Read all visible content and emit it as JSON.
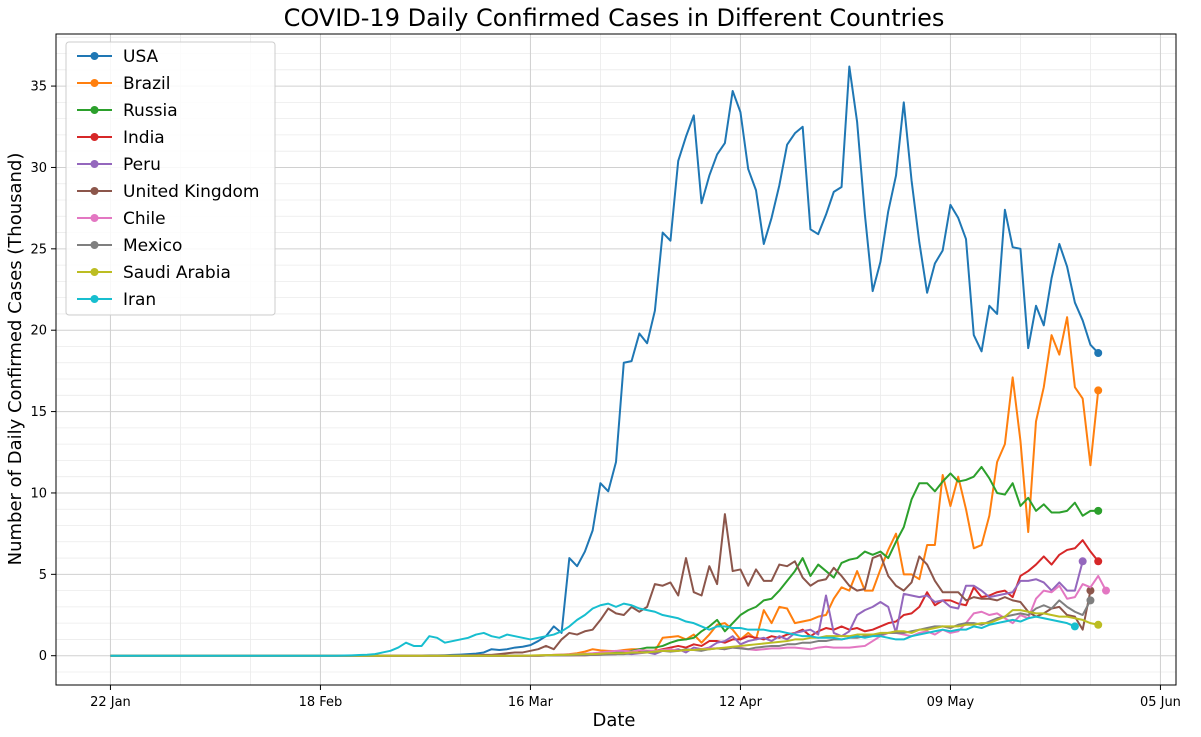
{
  "chart_data": {
    "type": "line",
    "title": "COVID-19 Daily Confirmed Cases in Different Countries",
    "xlabel": "Date",
    "ylabel": "Number of Daily Confirmed Cases (Thousand)",
    "x_start": "2020-01-22",
    "x_end": "2020-05-31",
    "xlim": [
      "2020-01-15",
      "2020-06-07"
    ],
    "ylim": [
      -1.8,
      38.2
    ],
    "x_ticks": [
      "22 Jan",
      "18 Feb",
      "16 Mar",
      "12 Apr",
      "09 May",
      "05 Jun"
    ],
    "y_ticks": [
      0,
      5,
      10,
      15,
      20,
      25,
      30,
      35
    ],
    "grid": "major and minor",
    "legend_position": "upper-left",
    "series": [
      {
        "name": "USA",
        "color": "#1f77b4",
        "values": [
          0,
          0,
          0,
          0,
          0,
          0,
          0,
          0,
          0,
          0,
          0,
          0,
          0,
          0,
          0,
          0,
          0,
          0,
          0,
          0,
          0,
          0,
          0,
          0,
          0,
          0,
          0,
          0,
          0,
          0,
          0,
          0,
          0,
          0,
          0,
          0,
          0,
          0,
          0,
          0.01,
          0.01,
          0.02,
          0.02,
          0.03,
          0.05,
          0.07,
          0.1,
          0.13,
          0.2,
          0.4,
          0.35,
          0.4,
          0.5,
          0.55,
          0.65,
          0.9,
          1.2,
          1.8,
          1.4,
          6.0,
          5.5,
          6.4,
          7.7,
          10.6,
          10.1,
          11.9,
          18.0,
          18.1,
          19.8,
          19.2,
          21.2,
          26.0,
          25.5,
          30.4,
          31.9,
          33.2,
          27.8,
          29.5,
          30.8,
          31.5,
          34.7,
          33.4,
          29.9,
          28.6,
          25.3,
          26.9,
          28.9,
          31.4,
          32.1,
          32.5,
          26.2,
          25.9,
          27.1,
          28.5,
          28.8,
          36.2,
          32.8,
          27.1,
          22.4,
          24.2,
          27.3,
          29.5,
          34.0,
          29.2,
          25.4,
          22.3,
          24.1,
          24.9,
          27.7,
          26.9,
          25.6,
          19.7,
          18.7,
          21.5,
          21.0,
          27.4,
          25.1,
          25.0,
          18.9,
          21.5,
          20.3,
          23.2,
          25.3,
          23.9,
          21.7,
          20.6,
          19.1,
          18.6
        ]
      },
      {
        "name": "Brazil",
        "color": "#ff7f0e",
        "values": [
          0,
          0,
          0,
          0,
          0,
          0,
          0,
          0,
          0,
          0,
          0,
          0,
          0,
          0,
          0,
          0,
          0,
          0,
          0,
          0,
          0,
          0,
          0,
          0,
          0,
          0,
          0,
          0,
          0,
          0,
          0,
          0,
          0,
          0,
          0,
          0,
          0,
          0,
          0,
          0,
          0,
          0,
          0,
          0,
          0,
          0,
          0,
          0,
          0,
          0,
          0,
          0,
          0,
          0.01,
          0.01,
          0.02,
          0.03,
          0.05,
          0.07,
          0.1,
          0.15,
          0.25,
          0.4,
          0.33,
          0.3,
          0.28,
          0.35,
          0.4,
          0.4,
          0.3,
          0.3,
          1.1,
          1.15,
          1.2,
          1.0,
          1.3,
          0.8,
          1.3,
          1.9,
          2.0,
          1.6,
          1.0,
          1.4,
          1.0,
          2.8,
          2.0,
          3.0,
          2.9,
          2.0,
          2.1,
          2.2,
          2.4,
          2.5,
          3.5,
          4.2,
          4.0,
          5.2,
          4.0,
          4.0,
          5.3,
          6.5,
          7.5,
          5.0,
          5.0,
          4.7,
          6.8,
          6.8,
          11.1,
          9.2,
          11.0,
          9.0,
          6.6,
          6.8,
          8.6,
          11.9,
          13.0,
          17.1,
          13.2,
          7.6,
          14.4,
          16.5,
          19.7,
          18.5,
          20.8,
          16.5,
          15.8,
          11.7,
          16.3
        ]
      },
      {
        "name": "Russia",
        "color": "#2ca02c",
        "values": [
          0,
          0,
          0,
          0,
          0,
          0,
          0,
          0,
          0,
          0,
          0,
          0,
          0,
          0,
          0,
          0,
          0,
          0,
          0,
          0,
          0,
          0,
          0,
          0,
          0,
          0,
          0,
          0,
          0,
          0,
          0,
          0,
          0,
          0,
          0,
          0,
          0,
          0,
          0,
          0,
          0,
          0,
          0,
          0,
          0,
          0,
          0,
          0,
          0,
          0,
          0,
          0,
          0,
          0,
          0.01,
          0.01,
          0.02,
          0.03,
          0.05,
          0.06,
          0.07,
          0.05,
          0.1,
          0.1,
          0.15,
          0.2,
          0.2,
          0.3,
          0.4,
          0.5,
          0.5,
          0.6,
          0.8,
          0.95,
          1.0,
          1.1,
          1.5,
          1.8,
          2.2,
          1.5,
          2.0,
          2.5,
          2.8,
          3.0,
          3.4,
          3.5,
          4.0,
          4.6,
          5.2,
          6.0,
          4.9,
          5.6,
          5.2,
          4.8,
          5.7,
          5.9,
          6.0,
          6.4,
          6.2,
          6.4,
          6.0,
          7.0,
          7.9,
          9.6,
          10.6,
          10.6,
          10.1,
          10.7,
          11.2,
          10.7,
          10.8,
          11.0,
          11.6,
          10.9,
          10.0,
          9.9,
          10.6,
          9.2,
          9.7,
          8.9,
          9.3,
          8.8,
          8.8,
          8.9,
          9.4,
          8.6,
          8.9,
          8.9
        ]
      },
      {
        "name": "India",
        "color": "#d62728",
        "values": [
          0,
          0,
          0,
          0,
          0,
          0,
          0,
          0,
          0,
          0,
          0,
          0,
          0,
          0,
          0,
          0,
          0,
          0,
          0,
          0,
          0,
          0,
          0,
          0,
          0,
          0,
          0,
          0,
          0,
          0,
          0,
          0,
          0,
          0,
          0,
          0,
          0,
          0,
          0,
          0,
          0,
          0,
          0,
          0,
          0,
          0,
          0,
          0,
          0,
          0,
          0,
          0,
          0,
          0,
          0,
          0,
          0.01,
          0.01,
          0.02,
          0.02,
          0.03,
          0.03,
          0.05,
          0.07,
          0.1,
          0.1,
          0.15,
          0.2,
          0.3,
          0.3,
          0.3,
          0.4,
          0.5,
          0.6,
          0.5,
          0.7,
          0.6,
          0.9,
          0.9,
          0.8,
          1.0,
          1.0,
          1.2,
          1.1,
          1.0,
          1.2,
          1.1,
          1.3,
          1.4,
          1.6,
          1.2,
          1.5,
          1.7,
          1.6,
          1.8,
          1.6,
          1.7,
          1.5,
          1.6,
          1.8,
          2.0,
          2.1,
          2.5,
          2.6,
          3.0,
          3.9,
          3.1,
          3.4,
          3.4,
          3.2,
          3.1,
          4.2,
          3.6,
          3.7,
          3.9,
          4.0,
          3.6,
          4.9,
          5.2,
          5.6,
          6.1,
          5.6,
          6.2,
          6.5,
          6.6,
          7.1,
          6.4,
          5.8
        ]
      },
      {
        "name": "Peru",
        "color": "#9467bd",
        "values": [
          0,
          0,
          0,
          0,
          0,
          0,
          0,
          0,
          0,
          0,
          0,
          0,
          0,
          0,
          0,
          0,
          0,
          0,
          0,
          0,
          0,
          0,
          0,
          0,
          0,
          0,
          0,
          0,
          0,
          0,
          0,
          0,
          0,
          0,
          0,
          0,
          0,
          0,
          0,
          0,
          0,
          0,
          0,
          0,
          0,
          0,
          0,
          0,
          0,
          0,
          0,
          0,
          0,
          0,
          0,
          0,
          0.01,
          0.02,
          0.03,
          0.03,
          0.05,
          0.06,
          0.07,
          0.1,
          0.1,
          0.1,
          0.15,
          0.1,
          0.15,
          0.2,
          0.1,
          0.3,
          0.3,
          0.4,
          0.2,
          0.5,
          0.4,
          0.5,
          0.8,
          0.9,
          1.2,
          0.7,
          0.9,
          1.0,
          1.1,
          0.9,
          1.2,
          1.0,
          1.4,
          1.5,
          1.6,
          1.3,
          3.7,
          1.4,
          1.2,
          1.5,
          2.5,
          2.8,
          3.0,
          3.3,
          3.0,
          1.4,
          3.8,
          3.7,
          3.6,
          3.7,
          3.3,
          3.4,
          3.0,
          2.9,
          4.3,
          4.3,
          4.0,
          3.6,
          3.7,
          3.8,
          3.9,
          4.6,
          4.6,
          4.7,
          4.5,
          4.0,
          4.5,
          4.0,
          4.0,
          5.8
        ]
      },
      {
        "name": "United Kingdom",
        "color": "#8c564b",
        "values": [
          0,
          0,
          0,
          0,
          0,
          0,
          0,
          0,
          0,
          0,
          0,
          0,
          0,
          0,
          0,
          0,
          0,
          0,
          0,
          0,
          0,
          0,
          0,
          0,
          0,
          0,
          0,
          0,
          0,
          0,
          0,
          0,
          0,
          0,
          0,
          0,
          0,
          0,
          0,
          0,
          0,
          0,
          0,
          0,
          0,
          0.01,
          0.02,
          0.03,
          0.05,
          0.05,
          0.1,
          0.15,
          0.2,
          0.2,
          0.3,
          0.4,
          0.6,
          0.4,
          1.0,
          1.4,
          1.3,
          1.5,
          1.6,
          2.2,
          2.9,
          2.6,
          2.5,
          3.0,
          2.7,
          3.0,
          4.4,
          4.3,
          4.5,
          3.7,
          6.0,
          3.9,
          3.7,
          5.5,
          4.4,
          8.7,
          5.2,
          5.3,
          4.3,
          5.3,
          4.6,
          4.6,
          5.6,
          5.5,
          5.8,
          4.8,
          4.3,
          4.6,
          4.7,
          5.4,
          4.9,
          4.3,
          4.0,
          4.1,
          6.0,
          6.2,
          4.9,
          4.3,
          4.0,
          4.5,
          6.1,
          5.6,
          4.6,
          3.9,
          3.9,
          3.9,
          3.4,
          3.6,
          3.5,
          3.5,
          3.4,
          3.6,
          3.4,
          3.3,
          2.7,
          2.4,
          2.6,
          2.9,
          3.0,
          2.5,
          2.4,
          1.6,
          4.0
        ]
      },
      {
        "name": "Chile",
        "color": "#e377c2",
        "values": [
          0,
          0,
          0,
          0,
          0,
          0,
          0,
          0,
          0,
          0,
          0,
          0,
          0,
          0,
          0,
          0,
          0,
          0,
          0,
          0,
          0,
          0,
          0,
          0,
          0,
          0,
          0,
          0,
          0,
          0,
          0,
          0,
          0,
          0,
          0,
          0,
          0,
          0,
          0,
          0,
          0,
          0,
          0,
          0,
          0,
          0,
          0,
          0,
          0,
          0,
          0,
          0,
          0,
          0,
          0,
          0.01,
          0.02,
          0.05,
          0.06,
          0.08,
          0.1,
          0.12,
          0.15,
          0.2,
          0.25,
          0.3,
          0.3,
          0.25,
          0.35,
          0.3,
          0.3,
          0.35,
          0.4,
          0.3,
          0.35,
          0.35,
          0.4,
          0.45,
          0.45,
          0.4,
          0.5,
          0.5,
          0.4,
          0.35,
          0.4,
          0.45,
          0.45,
          0.5,
          0.5,
          0.45,
          0.4,
          0.5,
          0.55,
          0.5,
          0.5,
          0.5,
          0.55,
          0.6,
          0.9,
          1.2,
          1.4,
          1.4,
          1.3,
          1.2,
          1.4,
          1.5,
          1.3,
          1.6,
          1.4,
          1.5,
          2.0,
          2.6,
          2.7,
          2.5,
          2.6,
          2.3,
          2.0,
          2.5,
          2.3,
          3.5,
          4.0,
          3.9,
          4.3,
          3.5,
          3.6,
          4.4,
          4.2,
          4.9,
          4.0
        ]
      },
      {
        "name": "Mexico",
        "color": "#7f7f7f",
        "values": [
          0,
          0,
          0,
          0,
          0,
          0,
          0,
          0,
          0,
          0,
          0,
          0,
          0,
          0,
          0,
          0,
          0,
          0,
          0,
          0,
          0,
          0,
          0,
          0,
          0,
          0,
          0,
          0,
          0,
          0,
          0,
          0,
          0,
          0,
          0,
          0,
          0,
          0,
          0,
          0,
          0,
          0,
          0,
          0,
          0,
          0,
          0,
          0,
          0,
          0,
          0,
          0,
          0,
          0,
          0,
          0,
          0.01,
          0.01,
          0.02,
          0.02,
          0.03,
          0.03,
          0.05,
          0.06,
          0.08,
          0.1,
          0.1,
          0.15,
          0.2,
          0.25,
          0.2,
          0.3,
          0.25,
          0.3,
          0.4,
          0.35,
          0.3,
          0.4,
          0.45,
          0.4,
          0.5,
          0.45,
          0.4,
          0.5,
          0.55,
          0.6,
          0.6,
          0.7,
          0.7,
          0.8,
          0.8,
          0.9,
          0.9,
          1.0,
          1.0,
          1.1,
          1.1,
          1.2,
          1.3,
          1.3,
          1.4,
          1.4,
          1.4,
          1.5,
          1.6,
          1.7,
          1.8,
          1.8,
          1.7,
          1.9,
          2.0,
          2.0,
          1.9,
          2.1,
          2.3,
          2.4,
          2.5,
          2.6,
          2.5,
          2.9,
          3.1,
          2.9,
          3.4,
          3.0,
          2.7,
          2.5,
          3.4
        ]
      },
      {
        "name": "Saudi Arabia",
        "color": "#bcbd22",
        "values": [
          0,
          0,
          0,
          0,
          0,
          0,
          0,
          0,
          0,
          0,
          0,
          0,
          0,
          0,
          0,
          0,
          0,
          0,
          0,
          0,
          0,
          0,
          0,
          0,
          0,
          0,
          0,
          0,
          0,
          0,
          0,
          0,
          0,
          0,
          0,
          0,
          0,
          0,
          0,
          0,
          0,
          0,
          0,
          0,
          0,
          0,
          0,
          0,
          0,
          0,
          0,
          0,
          0,
          0,
          0.01,
          0.02,
          0.03,
          0.04,
          0.05,
          0.06,
          0.08,
          0.1,
          0.1,
          0.12,
          0.15,
          0.15,
          0.15,
          0.2,
          0.2,
          0.2,
          0.25,
          0.3,
          0.3,
          0.3,
          0.35,
          0.35,
          0.4,
          0.4,
          0.45,
          0.5,
          0.55,
          0.6,
          0.65,
          0.7,
          0.75,
          0.8,
          0.85,
          0.9,
          1.0,
          1.0,
          1.1,
          1.1,
          1.2,
          1.2,
          1.2,
          1.2,
          1.3,
          1.3,
          1.3,
          1.4,
          1.4,
          1.5,
          1.5,
          1.4,
          1.6,
          1.6,
          1.7,
          1.8,
          1.8,
          1.8,
          1.9,
          1.9,
          2.0,
          2.0,
          2.2,
          2.4,
          2.8,
          2.8,
          2.7,
          2.6,
          2.6,
          2.5,
          2.4,
          2.4,
          2.3,
          2.2,
          2.0,
          1.9
        ]
      },
      {
        "name": "Iran",
        "color": "#17becf",
        "values": [
          0,
          0,
          0,
          0,
          0,
          0,
          0,
          0,
          0,
          0,
          0,
          0,
          0,
          0,
          0,
          0,
          0,
          0,
          0,
          0,
          0,
          0,
          0,
          0,
          0,
          0,
          0,
          0,
          0,
          0,
          0.01,
          0.02,
          0.04,
          0.06,
          0.1,
          0.2,
          0.3,
          0.5,
          0.8,
          0.6,
          0.6,
          1.2,
          1.1,
          0.8,
          0.9,
          1.0,
          1.1,
          1.3,
          1.4,
          1.2,
          1.1,
          1.3,
          1.2,
          1.1,
          1.0,
          1.1,
          1.2,
          1.3,
          1.5,
          1.8,
          2.2,
          2.5,
          2.9,
          3.1,
          3.2,
          3.0,
          3.2,
          3.1,
          2.9,
          2.8,
          2.7,
          2.5,
          2.4,
          2.3,
          2.1,
          2.0,
          1.8,
          1.6,
          1.8,
          1.8,
          1.7,
          1.7,
          1.6,
          1.6,
          1.6,
          1.5,
          1.5,
          1.4,
          1.3,
          1.2,
          1.2,
          1.1,
          1.1,
          1.1,
          1.0,
          1.1,
          1.2,
          1.1,
          1.2,
          1.2,
          1.1,
          1.0,
          1.0,
          1.2,
          1.3,
          1.4,
          1.5,
          1.6,
          1.5,
          1.6,
          1.6,
          1.8,
          1.7,
          1.9,
          2.0,
          2.1,
          2.2,
          2.1,
          2.3,
          2.4,
          2.3,
          2.2,
          2.1,
          2.0,
          1.8
        ]
      }
    ]
  }
}
